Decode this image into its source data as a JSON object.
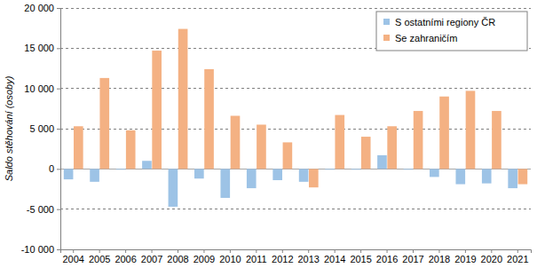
{
  "chart_data": {
    "type": "bar",
    "ylabel": "Saldo stěhování (osoby)",
    "categories": [
      "2004",
      "2005",
      "2006",
      "2007",
      "2008",
      "2009",
      "2010",
      "2011",
      "2012",
      "2013",
      "2014",
      "2015",
      "2016",
      "2017",
      "2018",
      "2019",
      "2020",
      "2021"
    ],
    "series": [
      {
        "name": "S ostatními regiony ČR",
        "color": "#9dc3e6",
        "values": [
          -1300,
          -1600,
          -100,
          1000,
          -4700,
          -1200,
          -3600,
          -2400,
          -1400,
          -1600,
          -100,
          -100,
          1700,
          -100,
          -1000,
          -1900,
          -1800,
          -2400
        ]
      },
      {
        "name": "Se zahraničím",
        "color": "#f4b183",
        "values": [
          5300,
          11300,
          4800,
          14700,
          17400,
          12400,
          6600,
          5500,
          3300,
          -2300,
          6700,
          4000,
          5300,
          7200,
          9000,
          9700,
          7200,
          -1900
        ]
      }
    ],
    "ylim": [
      -10000,
      20000
    ],
    "yticks": [
      {
        "value": -10000,
        "label": "-10 000"
      },
      {
        "value": -5000,
        "label": "-5 000"
      },
      0,
      {
        "value": 5000,
        "label": "5 000"
      },
      {
        "value": 10000,
        "label": "10 000"
      },
      {
        "value": 15000,
        "label": "15 000"
      },
      {
        "value": 20000,
        "label": "20 000"
      }
    ],
    "grid": true,
    "legend": "top-right"
  }
}
